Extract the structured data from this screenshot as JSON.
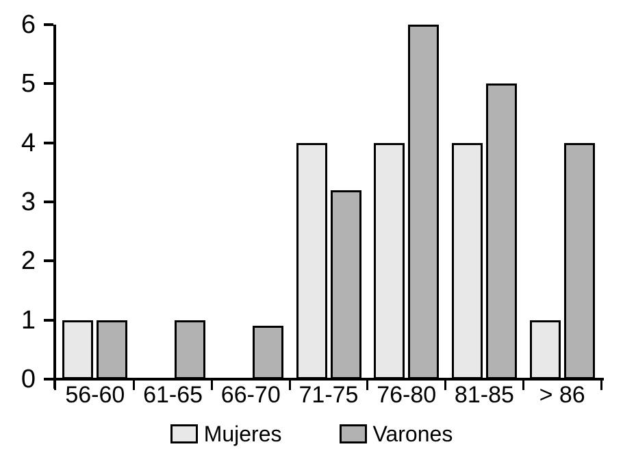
{
  "chart_data": {
    "type": "bar",
    "title": "",
    "xlabel": "",
    "ylabel": "",
    "categories": [
      "56-60",
      "61-65",
      "66-70",
      "71-75",
      "76-80",
      "81-85",
      "> 86"
    ],
    "series": [
      {
        "name": "Mujeres",
        "color": "#e8e8e8",
        "values": [
          1,
          0,
          0,
          4,
          4,
          4,
          1
        ]
      },
      {
        "name": "Varones",
        "color": "#b2b2b2",
        "values": [
          1,
          1,
          0.9,
          3.2,
          6,
          5,
          4
        ]
      }
    ],
    "ylim": [
      0,
      6
    ],
    "yticks": [
      0,
      1,
      2,
      3,
      4,
      5,
      6
    ],
    "grid": false,
    "legend_position": "bottom",
    "axis_color": "#000000",
    "background_color": "#ffffff"
  }
}
